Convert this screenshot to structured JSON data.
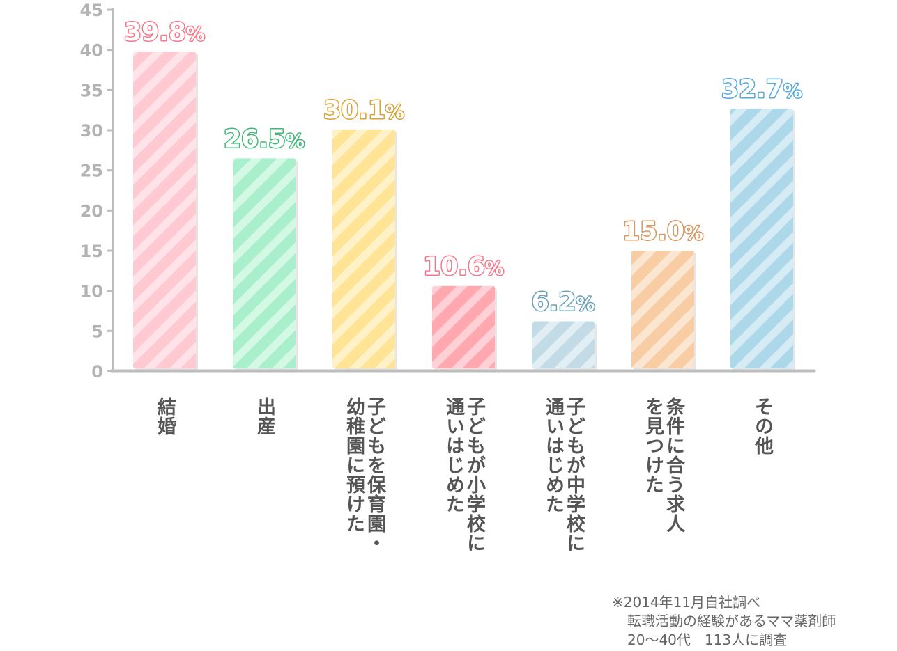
{
  "chart_data": {
    "type": "bar",
    "title": "",
    "xlabel": "",
    "ylabel": "",
    "ylim": [
      0,
      45
    ],
    "yticks": [
      0,
      5,
      10,
      15,
      20,
      25,
      30,
      35,
      40,
      45
    ],
    "grid": false,
    "legend": "none",
    "value_unit": "%",
    "categories": [
      "結婚",
      "出産",
      "子どもを保育園・\n幼稚園に預けた",
      "子どもが小学校に\n通いはじめた",
      "子どもが中学校に\n通いはじめた",
      "条件に合う求人\nを見つけた",
      "その他"
    ],
    "values": [
      39.8,
      26.5,
      30.1,
      10.6,
      6.2,
      15.0,
      32.7
    ],
    "value_labels": [
      "39.8",
      "26.5",
      "30.1",
      "10.6",
      "6.2",
      "15.0",
      "32.7"
    ],
    "colors": [
      {
        "fill": "#ffc9d2",
        "stripe": "#ffe3e8",
        "label": "#f4788b"
      },
      {
        "fill": "#a9efcb",
        "stripe": "#d3f8e4",
        "label": "#3fb77a"
      },
      {
        "fill": "#ffe495",
        "stripe": "#fff2c9",
        "label": "#d7a238"
      },
      {
        "fill": "#ffa8b0",
        "stripe": "#ffd1d6",
        "label": "#f4788b"
      },
      {
        "fill": "#c3dbe6",
        "stripe": "#e1eef4",
        "label": "#6a9fb8"
      },
      {
        "fill": "#f8cda4",
        "stripe": "#fbe6d1",
        "label": "#d69660"
      },
      {
        "fill": "#acd8ea",
        "stripe": "#d5ecf5",
        "label": "#59a8d8"
      }
    ]
  },
  "note": {
    "line1": "※2014年11月自社調べ",
    "line2": "転職活動の経験があるママ薬剤師",
    "line3": "20～40代　113人に調査"
  }
}
